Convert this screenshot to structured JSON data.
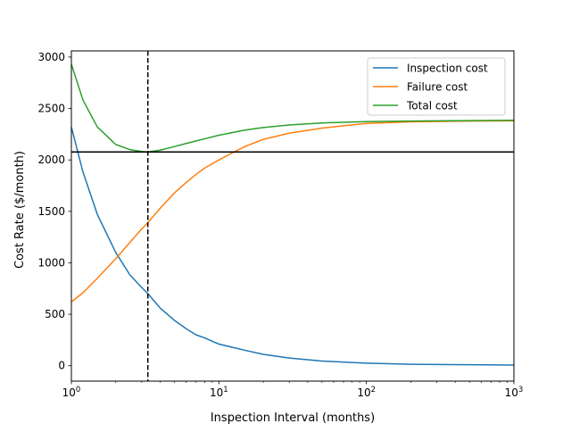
{
  "chart_data": {
    "type": "line",
    "xlabel": "Inspection Interval (months)",
    "ylabel": "Cost Rate ($/month)",
    "xscale": "log",
    "xlim": [
      1,
      1000
    ],
    "ylim": [
      -150,
      3060
    ],
    "x_ticks": [
      {
        "value": 1,
        "base": "10",
        "exp": "0"
      },
      {
        "value": 10,
        "base": "10",
        "exp": "1"
      },
      {
        "value": 100,
        "base": "10",
        "exp": "2"
      },
      {
        "value": 1000,
        "base": "10",
        "exp": "3"
      }
    ],
    "y_ticks": [
      {
        "value": 0,
        "label": "0"
      },
      {
        "value": 500,
        "label": "500"
      },
      {
        "value": 1000,
        "label": "1000"
      },
      {
        "value": 1500,
        "label": "1500"
      },
      {
        "value": 2000,
        "label": "2000"
      },
      {
        "value": 2500,
        "label": "2500"
      },
      {
        "value": 3000,
        "label": "3000"
      }
    ],
    "grid": false,
    "legend": "top-right",
    "series": [
      {
        "name": "Inspection cost",
        "color": "#1f77b4",
        "points": [
          [
            1,
            2320
          ],
          [
            1.2,
            1880
          ],
          [
            1.5,
            1470
          ],
          [
            2,
            1100
          ],
          [
            2.5,
            880
          ],
          [
            3,
            760
          ],
          [
            3.3,
            700
          ],
          [
            4,
            560
          ],
          [
            5,
            440
          ],
          [
            6,
            360
          ],
          [
            7,
            300
          ],
          [
            8,
            270
          ],
          [
            10,
            210
          ],
          [
            15,
            150
          ],
          [
            20,
            110
          ],
          [
            30,
            75
          ],
          [
            50,
            45
          ],
          [
            100,
            25
          ],
          [
            200,
            14
          ],
          [
            500,
            9
          ],
          [
            1000,
            6
          ]
        ]
      },
      {
        "name": "Failure cost",
        "color": "#ff7f0e",
        "points": [
          [
            1,
            620
          ],
          [
            1.2,
            710
          ],
          [
            1.5,
            850
          ],
          [
            2,
            1040
          ],
          [
            2.5,
            1200
          ],
          [
            3,
            1330
          ],
          [
            3.3,
            1390
          ],
          [
            4,
            1530
          ],
          [
            5,
            1680
          ],
          [
            6,
            1780
          ],
          [
            7,
            1860
          ],
          [
            8,
            1920
          ],
          [
            10,
            2000
          ],
          [
            12,
            2060
          ],
          [
            15,
            2130
          ],
          [
            20,
            2200
          ],
          [
            30,
            2260
          ],
          [
            50,
            2310
          ],
          [
            100,
            2355
          ],
          [
            200,
            2370
          ],
          [
            500,
            2378
          ],
          [
            1000,
            2380
          ]
        ]
      },
      {
        "name": "Total cost",
        "color": "#2ca02c",
        "points": [
          [
            1,
            2930
          ],
          [
            1.2,
            2580
          ],
          [
            1.5,
            2320
          ],
          [
            2,
            2150
          ],
          [
            2.5,
            2100
          ],
          [
            3,
            2082
          ],
          [
            3.3,
            2078
          ],
          [
            4,
            2095
          ],
          [
            5,
            2130
          ],
          [
            6,
            2160
          ],
          [
            7,
            2185
          ],
          [
            8,
            2205
          ],
          [
            10,
            2240
          ],
          [
            15,
            2290
          ],
          [
            20,
            2315
          ],
          [
            30,
            2340
          ],
          [
            50,
            2360
          ],
          [
            100,
            2372
          ],
          [
            200,
            2378
          ],
          [
            500,
            2382
          ],
          [
            1000,
            2385
          ]
        ]
      }
    ],
    "reference_lines": [
      {
        "orientation": "horizontal",
        "value": 2078,
        "style": "solid",
        "color": "#000000"
      },
      {
        "orientation": "vertical",
        "value": 3.3,
        "style": "dashed",
        "color": "#000000"
      }
    ]
  }
}
